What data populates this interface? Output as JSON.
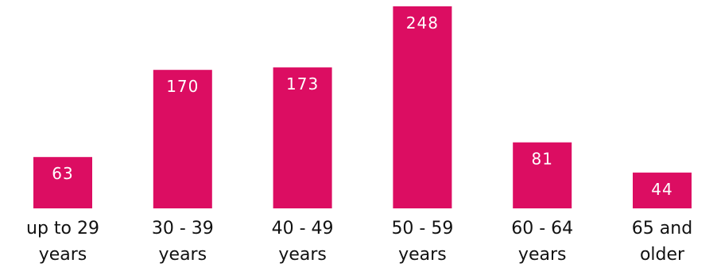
{
  "chart_data": {
    "type": "bar",
    "title": "",
    "xlabel": "",
    "ylabel": "",
    "categories": [
      [
        "up to 29",
        "years"
      ],
      [
        "30 - 39",
        "years"
      ],
      [
        "40 - 49",
        "years"
      ],
      [
        "50 - 59",
        "years"
      ],
      [
        "60 - 64",
        "years"
      ],
      [
        "65 and",
        "older"
      ]
    ],
    "values": [
      63,
      170,
      173,
      248,
      81,
      44
    ],
    "ylim": [
      0,
      248
    ],
    "grid": false,
    "bar_color": "#dc0d62",
    "value_label_color": "#ffffff",
    "axis_visible": false
  }
}
